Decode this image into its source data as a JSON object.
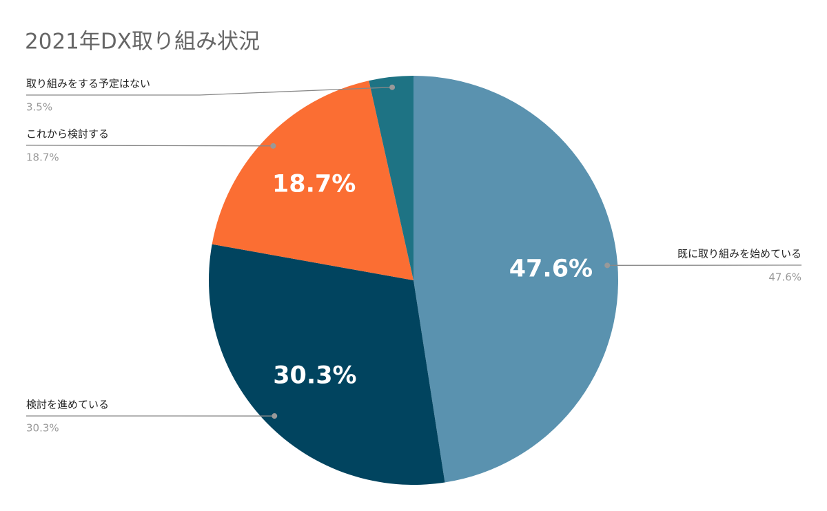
{
  "chart_data": {
    "type": "pie",
    "title": "2021年DX取り組み状況",
    "categories": [
      "既に取り組みを始めている",
      "検討を進めている",
      "これから検討する",
      "取り組みをする予定はない"
    ],
    "values": [
      47.6,
      30.3,
      18.7,
      3.5
    ],
    "value_labels": [
      "47.6%",
      "30.3%",
      "18.7%",
      "3.5%"
    ],
    "colors": [
      "#5a92af",
      "#01445f",
      "#fb6e33",
      "#1e7384"
    ]
  }
}
